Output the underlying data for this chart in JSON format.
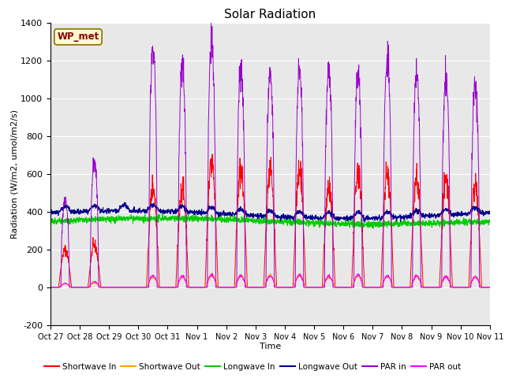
{
  "title": "Solar Radiation",
  "xlabel": "Time",
  "ylabel": "Radiation (W/m2, umol/m2/s)",
  "ylim": [
    -200,
    1400
  ],
  "yticks": [
    -200,
    0,
    200,
    400,
    600,
    800,
    1000,
    1200,
    1400
  ],
  "x_tick_labels": [
    "Oct 27",
    "Oct 28",
    "Oct 29",
    "Oct 30",
    "Oct 31",
    "Nov 1",
    "Nov 2",
    "Nov 3",
    "Nov 4",
    "Nov 5",
    "Nov 6",
    "Nov 7",
    "Nov 8",
    "Nov 9",
    "Nov 10",
    "Nov 11"
  ],
  "label_box_text": "WP_met",
  "label_box_color": "#FFFACD",
  "label_box_text_color": "#8B0000",
  "background_color": "#E8E8E8",
  "colors": {
    "shortwave_in": "#FF0000",
    "shortwave_out": "#FFA500",
    "longwave_in": "#00CC00",
    "longwave_out": "#00008B",
    "par_in": "#9900CC",
    "par_out": "#FF00FF"
  },
  "legend": [
    {
      "label": "Shortwave In",
      "color": "#FF0000"
    },
    {
      "label": "Shortwave Out",
      "color": "#FFA500"
    },
    {
      "label": "Longwave In",
      "color": "#00CC00"
    },
    {
      "label": "Longwave Out",
      "color": "#00008B"
    },
    {
      "label": "PAR in",
      "color": "#9900CC"
    },
    {
      "label": "PAR out",
      "color": "#FF00FF"
    }
  ],
  "sw_in_peaks": [
    200,
    220,
    0,
    530,
    520,
    665,
    620,
    610,
    600,
    530,
    600,
    590,
    580,
    570,
    550
  ],
  "par_in_peaks": [
    460,
    670,
    0,
    1270,
    1190,
    1310,
    1170,
    1140,
    1150,
    1150,
    1150,
    1230,
    1140,
    1110,
    1100
  ],
  "par_out_peaks": [
    20,
    30,
    0,
    65,
    60,
    65,
    60,
    60,
    65,
    60,
    65,
    60,
    60,
    55,
    55
  ],
  "lw_in_base": 350,
  "lw_out_base": 385,
  "n_days": 15,
  "n_pts_per_day": 144
}
